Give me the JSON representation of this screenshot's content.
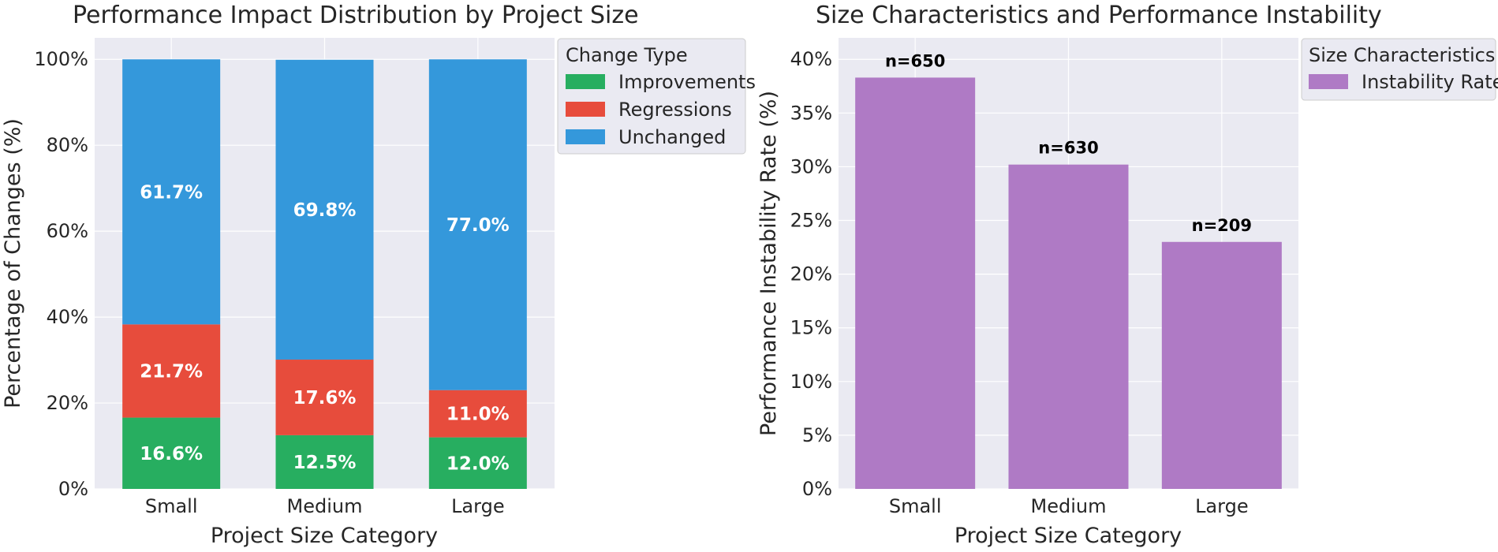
{
  "chart_data": [
    {
      "type": "bar",
      "stacked": true,
      "title": "Performance Impact Distribution by Project Size",
      "xlabel": "Project Size Category",
      "ylabel": "Percentage of Changes (%)",
      "categories": [
        "Small",
        "Medium",
        "Large"
      ],
      "ylim": [
        0,
        105
      ],
      "yticks": [
        "0%",
        "20%",
        "40%",
        "60%",
        "80%",
        "100%"
      ],
      "ytick_values": [
        0,
        20,
        40,
        60,
        80,
        100
      ],
      "grid": true,
      "legend": {
        "title": "Change Type",
        "placement": "upper-right-outside"
      },
      "series": [
        {
          "name": "Improvements",
          "color": "#27ae60",
          "values": [
            16.6,
            12.5,
            12.0
          ],
          "labels": [
            "16.6%",
            "12.5%",
            "12.0%"
          ]
        },
        {
          "name": "Regressions",
          "color": "#e74c3c",
          "values": [
            21.7,
            17.6,
            11.0
          ],
          "labels": [
            "21.7%",
            "17.6%",
            "11.0%"
          ]
        },
        {
          "name": "Unchanged",
          "color": "#3498db",
          "values": [
            61.7,
            69.8,
            77.0
          ],
          "labels": [
            "61.7%",
            "69.8%",
            "77.0%"
          ]
        }
      ]
    },
    {
      "type": "bar",
      "title": "Size Characteristics and Performance Instability",
      "xlabel": "Project Size Category",
      "ylabel": "Performance Instability Rate (%)",
      "categories": [
        "Small",
        "Medium",
        "Large"
      ],
      "ylim": [
        0,
        42
      ],
      "yticks": [
        "0%",
        "5%",
        "10%",
        "15%",
        "20%",
        "25%",
        "30%",
        "35%",
        "40%"
      ],
      "ytick_values": [
        0,
        5,
        10,
        15,
        20,
        25,
        30,
        35,
        40
      ],
      "grid": true,
      "legend": {
        "title": "Size Characteristics",
        "placement": "upper-right-outside"
      },
      "series": [
        {
          "name": "Instability Rate",
          "color": "#af7ac5",
          "values": [
            38.3,
            30.2,
            23.0
          ],
          "labels": [
            "n=650",
            "n=630",
            "n=209"
          ]
        }
      ]
    }
  ]
}
